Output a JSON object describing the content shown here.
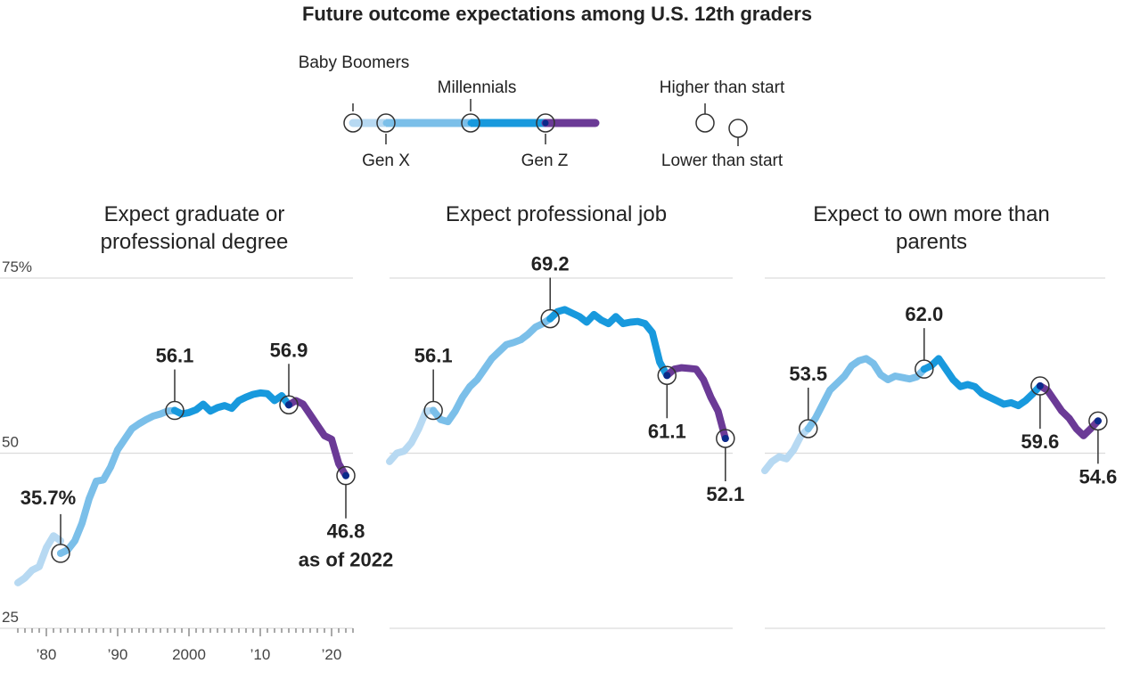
{
  "title": "Future outcome expectations among U.S. 12th graders",
  "legend": {
    "generations": [
      "Baby Boomers",
      "Gen X",
      "Millennials",
      "Gen Z"
    ],
    "higher_label": "Higher than start",
    "lower_label": "Lower than start"
  },
  "colors": {
    "baby_boomers": "#b7d9f2",
    "gen_x": "#7bbfe9",
    "millennials": "#1899dd",
    "gen_z": "#6b3a96",
    "dot": "#0a2a8a",
    "grid": "#dcdcdc"
  },
  "chart_data": [
    {
      "type": "line",
      "title": "Expect graduate or professional degree",
      "yticks": [
        "75%",
        "50",
        "25"
      ],
      "ylim": [
        25,
        75
      ],
      "xlim": [
        1976,
        2023
      ],
      "xticks": [
        {
          "x": 1980,
          "label": "’80"
        },
        {
          "x": 1990,
          "label": "’90"
        },
        {
          "x": 2000,
          "label": "2000"
        },
        {
          "x": 2010,
          "label": "’10"
        },
        {
          "x": 2020,
          "label": "’20"
        }
      ],
      "series": [
        {
          "generation": "baby_boomers",
          "x": [
            1976,
            1977,
            1978,
            1979,
            1980,
            1981,
            1982
          ],
          "y": [
            31.5,
            32.2,
            33.3,
            33.8,
            36.5,
            38.2,
            37.5
          ]
        },
        {
          "generation": "gen_x",
          "x": [
            1982,
            1983,
            1984,
            1985,
            1986,
            1987,
            1988,
            1989,
            1990,
            1991,
            1992,
            1993,
            1994,
            1995,
            1996,
            1997,
            1998
          ],
          "y": [
            35.7,
            36.2,
            37.5,
            40.0,
            43.5,
            46.0,
            46.2,
            48.0,
            50.5,
            52.0,
            53.5,
            54.2,
            54.8,
            55.3,
            55.6,
            56.0,
            56.1
          ]
        },
        {
          "generation": "millennials",
          "x": [
            1998,
            1999,
            2000,
            2001,
            2002,
            2003,
            2004,
            2005,
            2006,
            2007,
            2008,
            2009,
            2010,
            2011,
            2012,
            2013,
            2014
          ],
          "y": [
            56.1,
            55.6,
            55.8,
            56.2,
            57.0,
            56.0,
            56.5,
            56.8,
            56.4,
            57.5,
            58.0,
            58.4,
            58.6,
            58.5,
            57.5,
            58.2,
            56.9
          ]
        },
        {
          "generation": "gen_z",
          "x": [
            2014,
            2015,
            2016,
            2017,
            2018,
            2019,
            2020,
            2021,
            2022
          ],
          "y": [
            56.9,
            57.5,
            57.0,
            55.5,
            54.0,
            52.5,
            52.0,
            48.5,
            46.8
          ]
        }
      ],
      "dots": [
        {
          "x": 1982,
          "y": 35.7,
          "generation": "gen_x"
        },
        {
          "x": 1998,
          "y": 56.1,
          "generation": "millennials"
        },
        {
          "x": 2014,
          "y": 56.9,
          "generation": "gen_z"
        },
        {
          "x": 2022,
          "y": 46.8,
          "generation": "gen_z"
        }
      ],
      "annotations": [
        {
          "x": 1982,
          "y": 35.7,
          "text": "35.7%",
          "pos": "above-left"
        },
        {
          "x": 1998,
          "y": 56.1,
          "text": "56.1",
          "pos": "above"
        },
        {
          "x": 2014,
          "y": 56.9,
          "text": "56.9",
          "pos": "above"
        },
        {
          "x": 2022,
          "y": 46.8,
          "text": "46.8",
          "text2": "as of 2022",
          "pos": "below"
        }
      ]
    },
    {
      "type": "line",
      "title": "Expect professional job",
      "ylim": [
        25,
        75
      ],
      "xlim": [
        1976,
        2023
      ],
      "series": [
        {
          "generation": "baby_boomers",
          "x": [
            1976,
            1977,
            1978,
            1979,
            1980,
            1981,
            1982
          ],
          "y": [
            48.8,
            50.0,
            50.3,
            51.5,
            53.5,
            56.0,
            56.1
          ]
        },
        {
          "generation": "gen_x",
          "x": [
            1982,
            1983,
            1984,
            1985,
            1986,
            1987,
            1988,
            1989,
            1990,
            1991,
            1992,
            1993,
            1994,
            1995,
            1996,
            1997,
            1998
          ],
          "y": [
            56.1,
            54.8,
            54.5,
            56.0,
            58.0,
            59.5,
            60.5,
            62.0,
            63.5,
            64.5,
            65.5,
            65.8,
            66.2,
            67.0,
            68.0,
            68.5,
            69.2
          ]
        },
        {
          "generation": "millennials",
          "x": [
            1998,
            1999,
            2000,
            2001,
            2002,
            2003,
            2004,
            2005,
            2006,
            2007,
            2008,
            2009,
            2010,
            2011,
            2012,
            2013,
            2014
          ],
          "y": [
            69.2,
            70.2,
            70.5,
            70.0,
            69.5,
            68.7,
            69.8,
            69.0,
            68.5,
            69.5,
            68.5,
            68.7,
            68.8,
            68.5,
            67.2,
            63.0,
            61.1
          ]
        },
        {
          "generation": "gen_z",
          "x": [
            2014,
            2015,
            2016,
            2017,
            2018,
            2019,
            2020,
            2021,
            2022
          ],
          "y": [
            61.1,
            62.0,
            62.2,
            62.1,
            62.0,
            60.5,
            58.0,
            56.0,
            52.1
          ]
        }
      ],
      "dots": [
        {
          "x": 1982,
          "y": 56.1,
          "generation": "gen_x"
        },
        {
          "x": 1998,
          "y": 69.2,
          "generation": "millennials"
        },
        {
          "x": 2014,
          "y": 61.1,
          "generation": "gen_z"
        },
        {
          "x": 2022,
          "y": 52.1,
          "generation": "gen_z"
        }
      ],
      "annotations": [
        {
          "x": 1982,
          "y": 56.1,
          "text": "56.1",
          "pos": "above"
        },
        {
          "x": 1998,
          "y": 69.2,
          "text": "69.2",
          "pos": "above"
        },
        {
          "x": 2014,
          "y": 61.1,
          "text": "61.1",
          "pos": "below"
        },
        {
          "x": 2022,
          "y": 52.1,
          "text": "52.1",
          "pos": "below"
        }
      ]
    },
    {
      "type": "line",
      "title": "Expect to own more than parents",
      "ylim": [
        25,
        75
      ],
      "xlim": [
        1976,
        2023
      ],
      "series": [
        {
          "generation": "baby_boomers",
          "x": [
            1976,
            1977,
            1978,
            1979,
            1980,
            1981,
            1982
          ],
          "y": [
            47.5,
            48.8,
            49.5,
            49.2,
            50.5,
            52.5,
            53.5
          ]
        },
        {
          "generation": "gen_x",
          "x": [
            1982,
            1983,
            1984,
            1985,
            1986,
            1987,
            1988,
            1989,
            1990,
            1991,
            1992,
            1993,
            1994,
            1995,
            1996,
            1997,
            1998
          ],
          "y": [
            53.5,
            55.0,
            57.0,
            59.0,
            60.0,
            61.0,
            62.5,
            63.2,
            63.5,
            62.8,
            61.2,
            60.5,
            61.0,
            60.8,
            60.6,
            60.9,
            62.0
          ]
        },
        {
          "generation": "millennials",
          "x": [
            1998,
            1999,
            2000,
            2001,
            2002,
            2003,
            2004,
            2005,
            2006,
            2007,
            2008,
            2009,
            2010,
            2011,
            2012,
            2013,
            2014
          ],
          "y": [
            62.0,
            62.5,
            63.5,
            62.0,
            60.5,
            59.5,
            59.8,
            59.5,
            58.5,
            58.0,
            57.5,
            57.0,
            57.2,
            56.8,
            57.5,
            58.5,
            59.6
          ]
        },
        {
          "generation": "gen_z",
          "x": [
            2014,
            2015,
            2016,
            2017,
            2018,
            2019,
            2020,
            2021,
            2022
          ],
          "y": [
            59.6,
            59.0,
            57.5,
            56.0,
            55.0,
            53.5,
            52.5,
            53.5,
            54.6
          ]
        }
      ],
      "dots": [
        {
          "x": 1982,
          "y": 53.5,
          "generation": "gen_x"
        },
        {
          "x": 1998,
          "y": 62.0,
          "generation": "millennials"
        },
        {
          "x": 2014,
          "y": 59.6,
          "generation": "gen_z"
        },
        {
          "x": 2022,
          "y": 54.6,
          "generation": "gen_z"
        }
      ],
      "annotations": [
        {
          "x": 1982,
          "y": 53.5,
          "text": "53.5",
          "pos": "above"
        },
        {
          "x": 1998,
          "y": 62.0,
          "text": "62.0",
          "pos": "above"
        },
        {
          "x": 2014,
          "y": 59.6,
          "text": "59.6",
          "pos": "below"
        },
        {
          "x": 2022,
          "y": 54.6,
          "text": "54.6",
          "pos": "below"
        }
      ]
    }
  ]
}
